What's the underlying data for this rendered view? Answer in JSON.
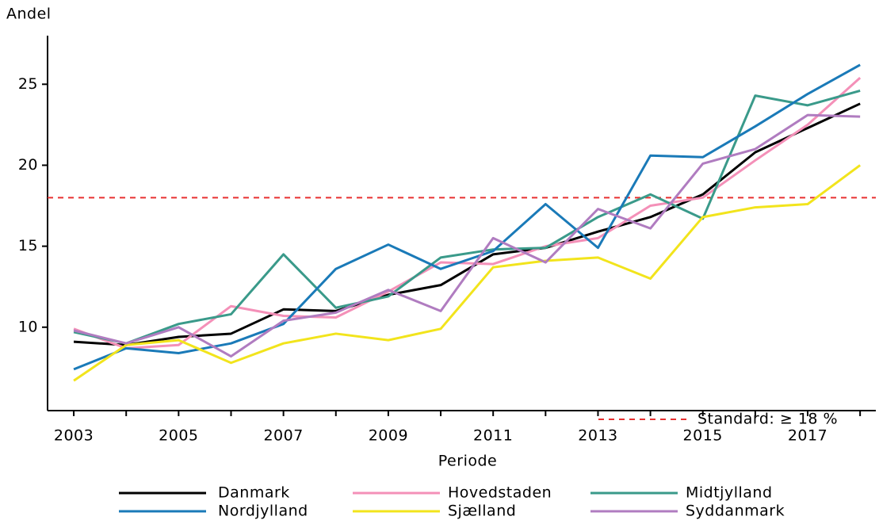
{
  "chart_data": {
    "type": "line",
    "y_label": "Andel",
    "x_label": "Periode",
    "x": [
      2003,
      2004,
      2005,
      2006,
      2007,
      2008,
      2009,
      2010,
      2011,
      2012,
      2013,
      2014,
      2015,
      2016,
      2017,
      2018
    ],
    "series": [
      {
        "name": "Danmark",
        "color": "#000000",
        "values": [
          9.1,
          8.9,
          9.4,
          9.6,
          11.1,
          11.0,
          12.0,
          12.6,
          14.5,
          14.9,
          15.9,
          16.8,
          18.2,
          20.8,
          22.3,
          23.8
        ]
      },
      {
        "name": "Hovedstaden",
        "color": "#f490b8",
        "values": [
          9.9,
          8.7,
          8.9,
          11.3,
          10.7,
          10.6,
          12.2,
          14.0,
          13.9,
          15.0,
          15.5,
          17.5,
          18.0,
          20.3,
          22.5,
          25.4
        ]
      },
      {
        "name": "Midtjylland",
        "color": "#3a9a8a",
        "values": [
          9.7,
          9.0,
          10.2,
          10.8,
          14.5,
          11.2,
          11.9,
          14.3,
          14.8,
          14.9,
          16.8,
          18.2,
          16.7,
          24.3,
          23.7,
          24.6
        ]
      },
      {
        "name": "Nordjylland",
        "color": "#1a7ab8",
        "values": [
          7.4,
          8.7,
          8.4,
          9.0,
          10.2,
          13.6,
          15.1,
          13.6,
          14.7,
          17.6,
          14.9,
          20.6,
          20.5,
          22.4,
          24.4,
          26.2
        ]
      },
      {
        "name": "Sjælland",
        "color": "#f2e41c",
        "values": [
          6.7,
          8.9,
          9.2,
          7.8,
          9.0,
          9.6,
          9.2,
          9.9,
          13.7,
          14.1,
          14.3,
          13.0,
          16.8,
          17.4,
          17.6,
          20.0
        ]
      },
      {
        "name": "Syddanmark",
        "color": "#b07cc0",
        "values": [
          9.8,
          9.0,
          10.0,
          8.2,
          10.4,
          10.9,
          12.3,
          11.0,
          15.5,
          14.0,
          17.3,
          16.1,
          20.1,
          21.0,
          23.1,
          23.0
        ]
      }
    ],
    "reference_line": {
      "value": 18,
      "label": "Standard: ≥ 18 %",
      "color": "#e83030"
    },
    "xlim": [
      2002.5,
      2018.3
    ],
    "xticks": [
      2003,
      2005,
      2007,
      2009,
      2011,
      2013,
      2015,
      2017
    ],
    "xminor_ticks": [
      2004,
      2006,
      2008,
      2010,
      2012,
      2014,
      2016,
      2018
    ],
    "ylim": [
      4.85,
      28
    ],
    "yticks": [
      10,
      15,
      20,
      25
    ],
    "grid": false
  }
}
